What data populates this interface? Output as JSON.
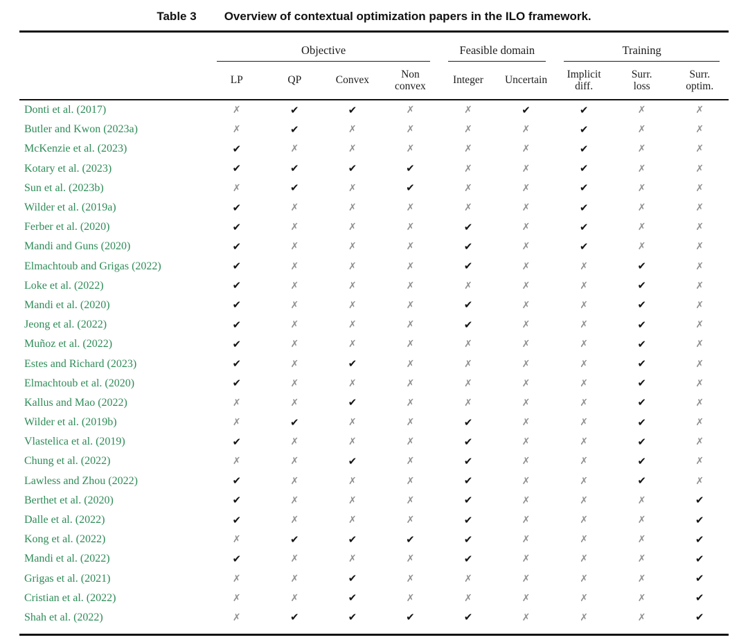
{
  "caption": {
    "label": "Table 3",
    "title": "Overview of contextual optimization papers in the ILO framework."
  },
  "table": {
    "groups": [
      {
        "label": "Objective",
        "span": 4
      },
      {
        "label": "Feasible domain",
        "span": 2
      },
      {
        "label": "Training",
        "span": 3
      }
    ],
    "columns": [
      "LP",
      "QP",
      "Convex",
      "Non\nconvex",
      "Integer",
      "Uncertain",
      "Implicit\ndiff.",
      "Surr.\nloss",
      "Surr.\noptim."
    ],
    "symbols": {
      "check": "✔",
      "cross": "✗"
    },
    "colors": {
      "paper": "#2e8b57",
      "check": "#141414",
      "cross": "#8f8f8f"
    },
    "rows": [
      {
        "paper": "Donti et al. (2017)",
        "cells": [
          0,
          1,
          1,
          0,
          0,
          1,
          1,
          0,
          0
        ]
      },
      {
        "paper": "Butler and Kwon (2023a)",
        "cells": [
          0,
          1,
          0,
          0,
          0,
          0,
          1,
          0,
          0
        ]
      },
      {
        "paper": "McKenzie et al. (2023)",
        "cells": [
          1,
          0,
          0,
          0,
          0,
          0,
          1,
          0,
          0
        ]
      },
      {
        "paper": "Kotary et al. (2023)",
        "cells": [
          1,
          1,
          1,
          1,
          0,
          0,
          1,
          0,
          0
        ]
      },
      {
        "paper": "Sun et al. (2023b)",
        "cells": [
          0,
          1,
          0,
          1,
          0,
          0,
          1,
          0,
          0
        ]
      },
      {
        "paper": "Wilder et al. (2019a)",
        "cells": [
          1,
          0,
          0,
          0,
          0,
          0,
          1,
          0,
          0
        ]
      },
      {
        "paper": "Ferber et al. (2020)",
        "cells": [
          1,
          0,
          0,
          0,
          1,
          0,
          1,
          0,
          0
        ]
      },
      {
        "paper": "Mandi and Guns (2020)",
        "cells": [
          1,
          0,
          0,
          0,
          1,
          0,
          1,
          0,
          0
        ]
      },
      {
        "paper": "Elmachtoub and Grigas (2022)",
        "cells": [
          1,
          0,
          0,
          0,
          1,
          0,
          0,
          1,
          0
        ]
      },
      {
        "paper": "Loke et al. (2022)",
        "cells": [
          1,
          0,
          0,
          0,
          0,
          0,
          0,
          1,
          0
        ]
      },
      {
        "paper": "Mandi et al. (2020)",
        "cells": [
          1,
          0,
          0,
          0,
          1,
          0,
          0,
          1,
          0
        ]
      },
      {
        "paper": "Jeong et al. (2022)",
        "cells": [
          1,
          0,
          0,
          0,
          1,
          0,
          0,
          1,
          0
        ]
      },
      {
        "paper": "Muñoz et al. (2022)",
        "cells": [
          1,
          0,
          0,
          0,
          0,
          0,
          0,
          1,
          0
        ]
      },
      {
        "paper": "Estes and Richard (2023)",
        "cells": [
          1,
          0,
          1,
          0,
          0,
          0,
          0,
          1,
          0
        ]
      },
      {
        "paper": "Elmachtoub et al. (2020)",
        "cells": [
          1,
          0,
          0,
          0,
          0,
          0,
          0,
          1,
          0
        ]
      },
      {
        "paper": "Kallus and Mao (2022)",
        "cells": [
          0,
          0,
          1,
          0,
          0,
          0,
          0,
          1,
          0
        ]
      },
      {
        "paper": "Wilder et al. (2019b)",
        "cells": [
          0,
          1,
          0,
          0,
          1,
          0,
          0,
          1,
          0
        ]
      },
      {
        "paper": "Vlastelica et al. (2019)",
        "cells": [
          1,
          0,
          0,
          0,
          1,
          0,
          0,
          1,
          0
        ]
      },
      {
        "paper": "Chung et al. (2022)",
        "cells": [
          0,
          0,
          1,
          0,
          1,
          0,
          0,
          1,
          0
        ]
      },
      {
        "paper": "Lawless and Zhou (2022)",
        "cells": [
          1,
          0,
          0,
          0,
          1,
          0,
          0,
          1,
          0
        ]
      },
      {
        "paper": "Berthet et al. (2020)",
        "cells": [
          1,
          0,
          0,
          0,
          1,
          0,
          0,
          0,
          1
        ]
      },
      {
        "paper": "Dalle et al. (2022)",
        "cells": [
          1,
          0,
          0,
          0,
          1,
          0,
          0,
          0,
          1
        ]
      },
      {
        "paper": "Kong et al. (2022)",
        "cells": [
          0,
          1,
          1,
          1,
          1,
          0,
          0,
          0,
          1
        ]
      },
      {
        "paper": "Mandi et al. (2022)",
        "cells": [
          1,
          0,
          0,
          0,
          1,
          0,
          0,
          0,
          1
        ]
      },
      {
        "paper": "Grigas et al. (2021)",
        "cells": [
          0,
          0,
          1,
          0,
          0,
          0,
          0,
          0,
          1
        ]
      },
      {
        "paper": "Cristian et al. (2022)",
        "cells": [
          0,
          0,
          1,
          0,
          0,
          0,
          0,
          0,
          1
        ]
      },
      {
        "paper": "Shah et al. (2022)",
        "cells": [
          0,
          1,
          1,
          1,
          1,
          0,
          0,
          0,
          1
        ]
      }
    ]
  }
}
